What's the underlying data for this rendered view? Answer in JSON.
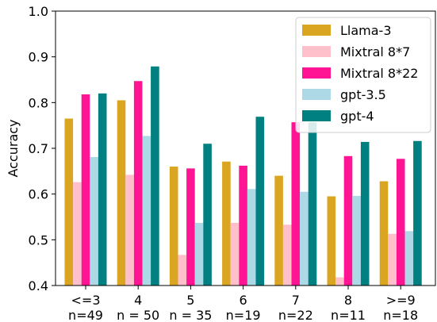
{
  "chart_data": {
    "type": "bar",
    "ylabel": "Accuracy",
    "xlabel": "",
    "ylim": [
      0.4,
      1.0
    ],
    "yticks": [
      "0.4",
      "0.5",
      "0.6",
      "0.7",
      "0.8",
      "0.9",
      "1.0"
    ],
    "categories": [
      [
        "<=3",
        "n=49"
      ],
      [
        "4",
        "n = 50"
      ],
      [
        "5",
        "n = 35"
      ],
      [
        "6",
        "n=19"
      ],
      [
        "7",
        "n=22"
      ],
      [
        "8",
        "n=11"
      ],
      [
        ">=9",
        "n=18"
      ]
    ],
    "legend_position": "top-right",
    "series": [
      {
        "name": "Llama-3",
        "color": "#DAA520",
        "values": [
          0.765,
          0.805,
          0.66,
          0.671,
          0.64,
          0.595,
          0.628
        ]
      },
      {
        "name": "Mixtral 8*7",
        "color": "#FFC0CB",
        "values": [
          0.626,
          0.642,
          0.467,
          0.537,
          0.533,
          0.418,
          0.513
        ]
      },
      {
        "name": "Mixtral 8*22",
        "color": "#FF1493",
        "values": [
          0.818,
          0.847,
          0.656,
          0.662,
          0.757,
          0.683,
          0.677
        ]
      },
      {
        "name": "gpt-3.5",
        "color": "#ADD8E6",
        "values": [
          0.681,
          0.727,
          0.537,
          0.611,
          0.605,
          0.596,
          0.519
        ]
      },
      {
        "name": "gpt-4",
        "color": "#008080",
        "values": [
          0.82,
          0.879,
          0.71,
          0.769,
          0.757,
          0.714,
          0.716
        ]
      }
    ]
  }
}
